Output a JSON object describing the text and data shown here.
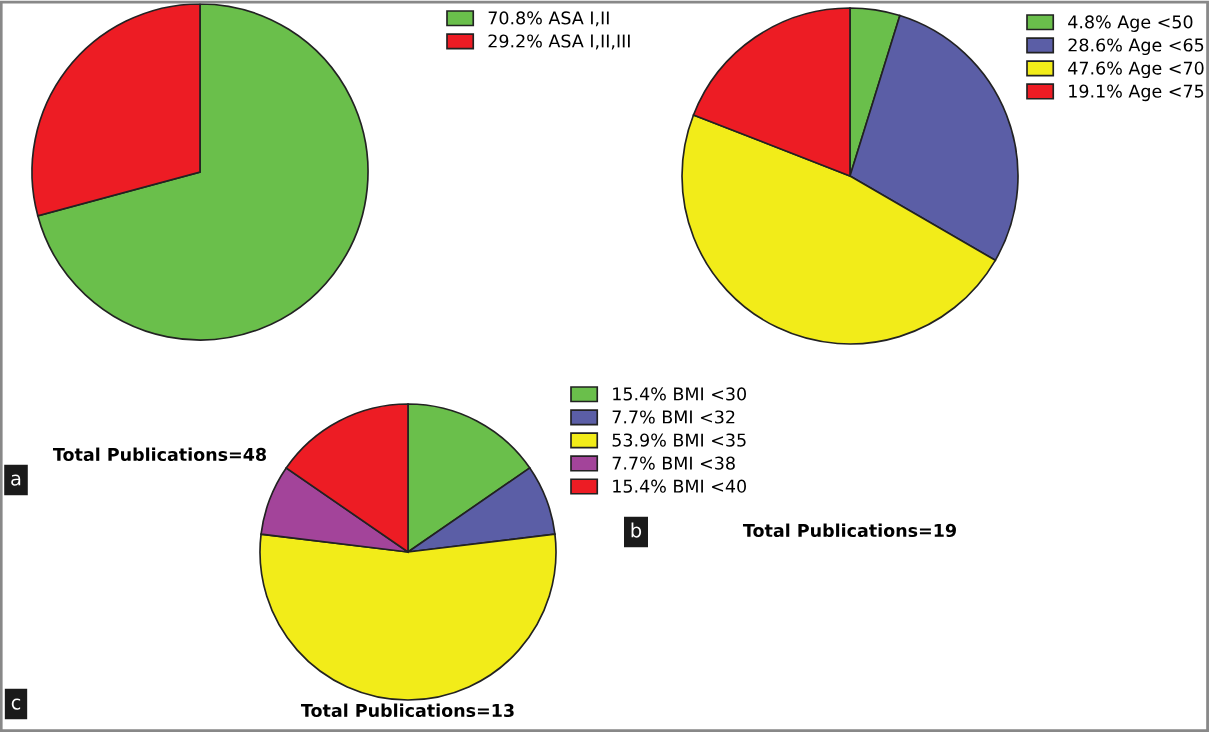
{
  "chart_data": [
    {
      "type": "pie",
      "xlabel": "Total Publications=48",
      "annotations": [
        "a"
      ],
      "legend": "right",
      "categories": [
        "70.8% ASA I,II",
        "29.2% ASA I,II,III"
      ],
      "values": [
        70.8,
        29.2
      ],
      "colors": [
        "#6abf4b",
        "#ed1c24"
      ]
    },
    {
      "type": "pie",
      "xlabel": "Total Publications=19",
      "annotations": [
        "b"
      ],
      "legend": "right",
      "categories": [
        "4.8% Age <50",
        "28.6% Age <65",
        "47.6% Age <70",
        "19.1% Age <75"
      ],
      "values": [
        4.8,
        28.6,
        47.6,
        19.1
      ],
      "colors": [
        "#6abf4b",
        "#5b5ea6",
        "#f2ec19",
        "#ed1c24"
      ]
    },
    {
      "type": "pie",
      "xlabel": "Total Publications=13",
      "annotations": [
        "c"
      ],
      "legend": "right",
      "categories": [
        "15.4% BMI <30",
        "7.7% BMI <32",
        "53.9% BMI <35",
        "7.7% BMI <38",
        "15.4% BMI <40"
      ],
      "values": [
        15.4,
        7.7,
        53.9,
        7.7,
        15.4
      ],
      "colors": [
        "#6abf4b",
        "#5b5ea6",
        "#f2ec19",
        "#a3449a",
        "#ed1c24"
      ]
    }
  ]
}
